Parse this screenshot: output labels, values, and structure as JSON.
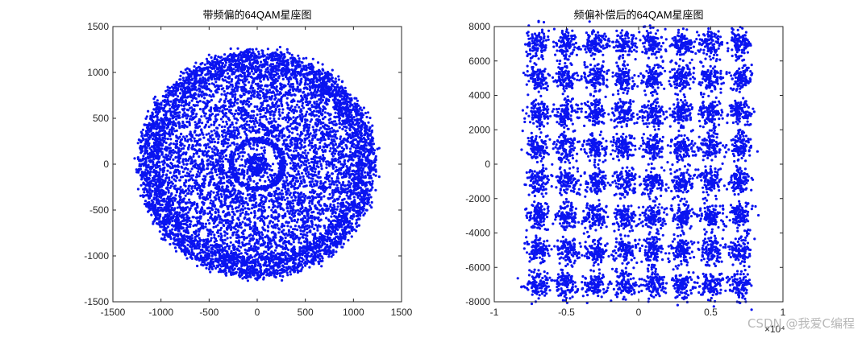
{
  "watermark": "CSDN @我爱C编程",
  "colors": {
    "marker": "#0a14f0",
    "axis": "#262626"
  },
  "chart_data": [
    {
      "type": "scatter",
      "title": "带频偏的64QAM星座图",
      "xlim": [
        -1500,
        1500
      ],
      "ylim": [
        -1500,
        1500
      ],
      "xticks": [
        -1500,
        -1000,
        -500,
        0,
        500,
        1000,
        1500
      ],
      "yticks": [
        -1500,
        -1000,
        -500,
        0,
        500,
        1000,
        1500
      ],
      "xtick_labels": [
        "-1500",
        "-1000",
        "-500",
        "0",
        "500",
        "1000",
        "1500"
      ],
      "ytick_labels": [
        "-1500",
        "-1000",
        "-500",
        "0",
        "500",
        "1000",
        "1500"
      ],
      "pattern": "concentric rings (rotated 64QAM)",
      "rings": [
        {
          "radius": 80,
          "spread": 25,
          "weight": 0.02
        },
        {
          "radius": 270,
          "spread": 18,
          "weight": 0.06
        },
        {
          "radius": 600,
          "spread": 420,
          "weight": 0.55
        },
        {
          "radius": 1060,
          "spread": 35,
          "weight": 0.12
        },
        {
          "radius": 1180,
          "spread": 40,
          "weight": 0.25
        }
      ]
    },
    {
      "type": "scatter",
      "title": "频偏补偿后的64QAM星座图",
      "xlim": [
        -1,
        1
      ],
      "ylim": [
        -8000,
        8000
      ],
      "x_exponent_label": "×10⁴",
      "xticks": [
        -1,
        -0.5,
        0,
        0.5,
        1
      ],
      "yticks": [
        -8000,
        -6000,
        -4000,
        -2000,
        0,
        2000,
        4000,
        6000,
        8000
      ],
      "xtick_labels": [
        "-1",
        "-0.5",
        "0",
        "0.5",
        "1"
      ],
      "ytick_labels": [
        "-8000",
        "-6000",
        "-4000",
        "-2000",
        "0",
        "2000",
        "4000",
        "6000",
        "8000"
      ],
      "pattern": "8x8 grid of clusters",
      "cluster_x": [
        -0.7,
        -0.5,
        -0.3,
        -0.1,
        0.1,
        0.3,
        0.5,
        0.7
      ],
      "cluster_y": [
        -7000,
        -5000,
        -3000,
        -1000,
        1000,
        3000,
        5000,
        7000
      ],
      "cluster_spread_x": 0.04,
      "cluster_spread_y": 400
    }
  ]
}
